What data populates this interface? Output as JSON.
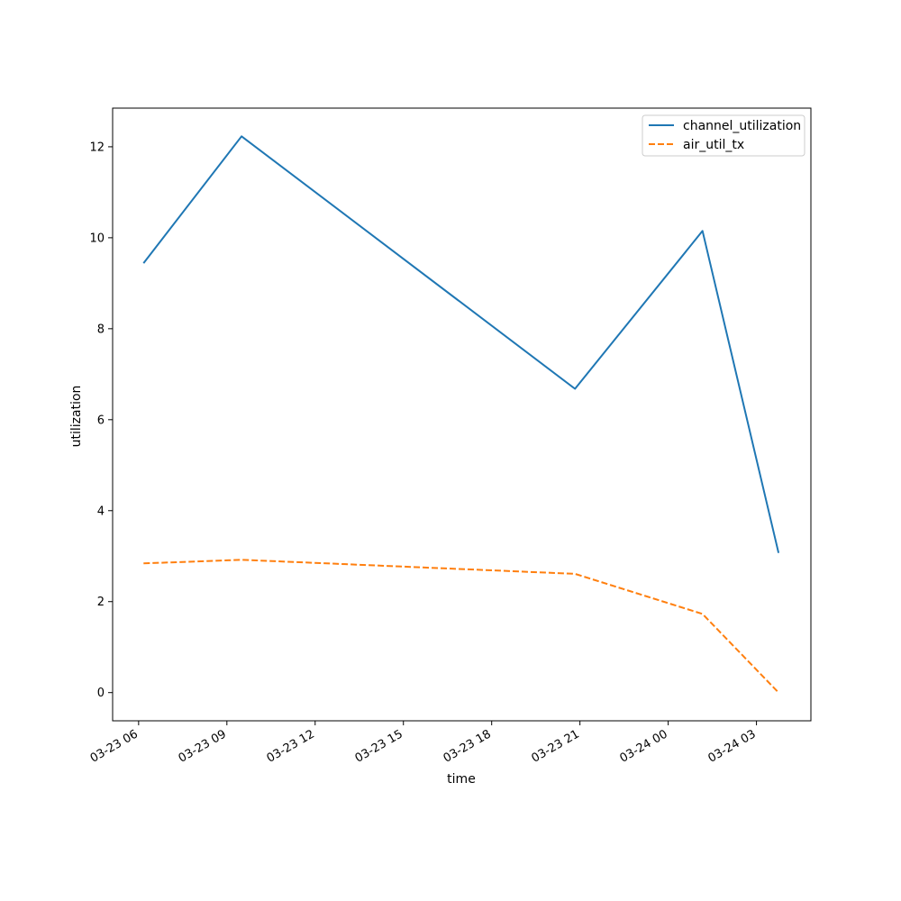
{
  "chart_data": {
    "type": "line",
    "title": "",
    "xlabel": "time",
    "ylabel": "utilization",
    "x": [
      "2024-03-23 06:10",
      "2024-03-23 09:30",
      "2024-03-23 20:50",
      "2024-03-24 01:10",
      "2024-03-24 03:45"
    ],
    "x_ticks": [
      "03-23 06",
      "03-23 09",
      "03-23 12",
      "03-23 15",
      "03-23 18",
      "03-23 21",
      "03-24 00",
      "03-24 03"
    ],
    "y_ticks": [
      0,
      2,
      4,
      6,
      8,
      10,
      12
    ],
    "ylim": [
      -0.62,
      12.85
    ],
    "xlim": [
      "2024-03-23 05:07",
      "2024-03-24 04:51"
    ],
    "series": [
      {
        "name": "channel_utilization",
        "values": [
          9.44,
          12.23,
          6.68,
          10.15,
          3.07
        ],
        "color": "#1f77b4",
        "style": "solid"
      },
      {
        "name": "air_util_tx",
        "values": [
          2.84,
          2.92,
          2.61,
          1.73,
          0.0
        ],
        "color": "#ff7f0e",
        "style": "dashed"
      }
    ],
    "legend_position": "top-right",
    "grid": false
  }
}
